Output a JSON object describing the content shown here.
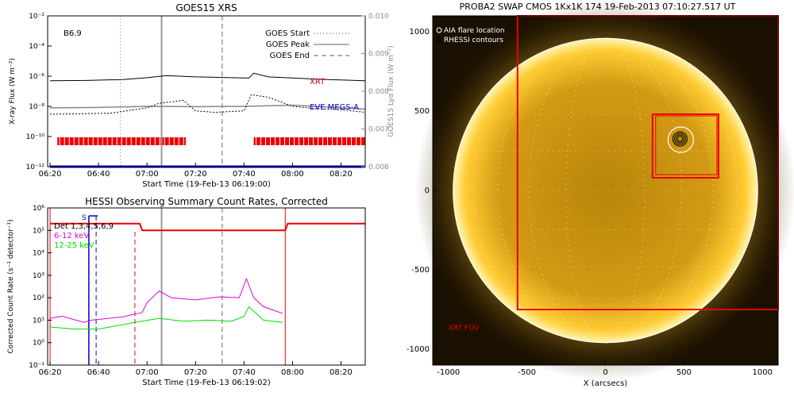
{
  "chart_data": [
    {
      "type": "line",
      "title": "GOES15 XRS",
      "xlabel": "Start Time (19-Feb-13 06:19:00)",
      "ylabel": "X-ray Flux (W m⁻²)",
      "ylabel_right": "GOES15 Lyα Flux (W m⁻²)",
      "ylog": true,
      "xticks": [
        "06:20",
        "06:40",
        "07:00",
        "07:20",
        "07:40",
        "08:00",
        "08:20"
      ],
      "yticks": [
        "10⁻¹²",
        "10⁻¹⁰",
        "10⁻⁸",
        "10⁻⁶",
        "10⁻⁴",
        "10⁻²"
      ],
      "yticks_right": [
        "0.006",
        "0.007",
        "0.008",
        "0.009",
        "0.010"
      ],
      "class_label": "B6.9",
      "legend": [
        "GOES Start",
        "GOES Peak",
        "GOES End"
      ],
      "legend_position": "top-right",
      "annotations": [
        "XRT",
        "EVE MEGS-A"
      ],
      "vertical_lines": [
        {
          "name": "GOES Start",
          "x": "06:49",
          "style": "dotted"
        },
        {
          "name": "GOES Peak",
          "x": "07:06",
          "style": "solid"
        },
        {
          "name": "GOES End",
          "x": "07:31",
          "style": "dashed"
        }
      ],
      "series": [
        {
          "name": "XRT",
          "color": "#000000",
          "x": [
            "06:20",
            "06:35",
            "06:50",
            "07:00",
            "07:08",
            "07:20",
            "07:35",
            "07:42",
            "07:44",
            "07:50",
            "08:05",
            "08:15",
            "08:30"
          ],
          "y": [
            5e-07,
            5.2e-07,
            6e-07,
            8e-07,
            1.1e-06,
            9e-07,
            8e-07,
            7.5e-07,
            1.6e-06,
            9e-07,
            7e-07,
            6e-07,
            5e-07
          ]
        },
        {
          "color": "#888888",
          "x": [
            "06:20",
            "06:40",
            "07:00",
            "07:20",
            "07:40",
            "08:00",
            "08:20",
            "08:30"
          ],
          "y": [
            8e-09,
            8.5e-09,
            1e-08,
            9.5e-09,
            1e-08,
            1.2e-08,
            8e-09,
            6.5e-09
          ]
        },
        {
          "color": "#000000",
          "x": [
            "06:20",
            "06:45",
            "07:00",
            "07:05",
            "07:15",
            "07:20",
            "07:28",
            "07:40",
            "07:43",
            "07:50",
            "08:00",
            "08:10",
            "08:20",
            "08:30"
          ],
          "y": [
            3e-09,
            3.5e-09,
            8e-09,
            1.6e-08,
            2.5e-08,
            5e-09,
            4e-09,
            5e-09,
            6e-08,
            4e-08,
            1e-08,
            7e-09,
            6e-09,
            4e-09
          ]
        },
        {
          "name": "EVE MEGS-A",
          "color": "#0000cc",
          "x": [
            "06:20",
            "08:30"
          ],
          "y": [
            1e-12,
            1e-12
          ]
        }
      ],
      "orbit_bars": [
        {
          "from": "06:23",
          "to": "07:16"
        },
        {
          "from": "07:44",
          "to": "08:30"
        }
      ]
    },
    {
      "type": "line",
      "title": "HESSI Observing Summary Count Rates, Corrected",
      "xlabel": "Start Time (19-Feb-13 06:19:02)",
      "ylabel": "Corrected Count Rate (s⁻¹ detector⁻¹)",
      "ylog": true,
      "xticks": [
        "06:20",
        "06:40",
        "07:00",
        "07:20",
        "07:40",
        "08:00",
        "08:20"
      ],
      "yticks": [
        "10⁻¹",
        "10⁰",
        "10¹",
        "10²",
        "10³",
        "10⁴",
        "10⁵",
        "10⁶"
      ],
      "legend": [
        "Det 1,3,4,5,6,9",
        "6-12 keV",
        "12-25 keV"
      ],
      "legend_position": "top-left",
      "flag_label": "S",
      "series": [
        {
          "name": "6-12 keV",
          "color": "#dd00dd",
          "x": [
            "06:20",
            "06:25",
            "06:34",
            "06:37",
            "06:50",
            "06:58",
            "07:00",
            "07:05",
            "07:10",
            "07:20",
            "07:30",
            "07:38",
            "07:41",
            "07:44",
            "07:48",
            "07:56"
          ],
          "y": [
            12,
            15,
            8,
            10,
            14,
            22,
            60,
            200,
            100,
            80,
            110,
            100,
            700,
            100,
            40,
            20
          ]
        },
        {
          "name": "12-25 keV",
          "color": "#00dd00",
          "x": [
            "06:20",
            "06:30",
            "06:40",
            "06:55",
            "07:05",
            "07:15",
            "07:25",
            "07:35",
            "07:40",
            "07:42",
            "07:48",
            "07:56"
          ],
          "y": [
            5,
            4,
            4,
            8,
            12,
            9,
            10,
            9,
            15,
            40,
            10,
            8
          ]
        },
        {
          "color": "#ee0000",
          "x": [
            "06:20",
            "06:57",
            "06:58",
            "07:45",
            "07:57",
            "07:58",
            "08:30"
          ],
          "y": [
            200000,
            200000,
            100000,
            100000,
            100000,
            200000,
            200000
          ]
        }
      ]
    },
    {
      "type": "heatmap",
      "title": "PROBA2 SWAP CMOS 1Kx1K 174 19-Feb-2013 07:10:27.517 UT",
      "xlabel": "X (arcsecs)",
      "xticks": [
        "-1000",
        "-500",
        "0",
        "500",
        "1000"
      ],
      "yticks": [
        "-1000",
        "-500",
        "0",
        "500",
        "1000"
      ],
      "legend": [
        "AIA flare location",
        "RHESSI contours"
      ],
      "legend_position": "top-left",
      "annotations": [
        "XRT FOV"
      ],
      "flare_location": {
        "x": 480,
        "y": 320
      },
      "xlim": [
        -1100,
        1100
      ],
      "ylim": [
        -1100,
        1100
      ]
    }
  ]
}
